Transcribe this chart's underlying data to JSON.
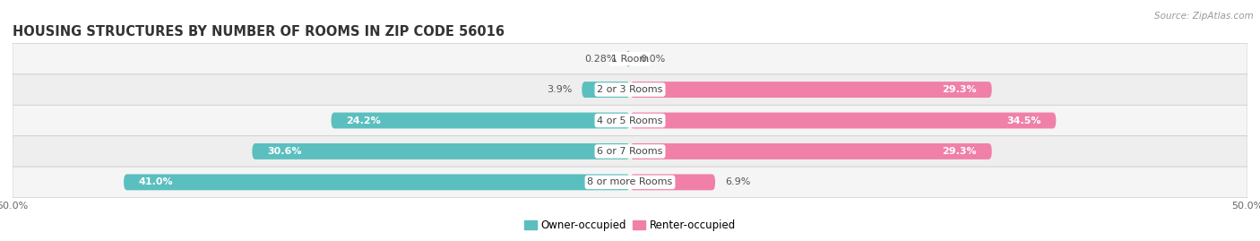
{
  "title": "HOUSING STRUCTURES BY NUMBER OF ROOMS IN ZIP CODE 56016",
  "source": "Source: ZipAtlas.com",
  "categories": [
    "1 Room",
    "2 or 3 Rooms",
    "4 or 5 Rooms",
    "6 or 7 Rooms",
    "8 or more Rooms"
  ],
  "owner_values": [
    0.28,
    3.9,
    24.2,
    30.6,
    41.0
  ],
  "renter_values": [
    0.0,
    29.3,
    34.5,
    29.3,
    6.9
  ],
  "owner_color": "#5BBFBF",
  "renter_color": "#F080A8",
  "axis_max": 50.0,
  "axis_min": -50.0,
  "bar_height": 0.52,
  "title_fontsize": 10.5,
  "label_fontsize": 8.0,
  "tick_fontsize": 8.0,
  "source_fontsize": 7.5,
  "legend_fontsize": 8.5,
  "bg_colors": [
    "#F5F5F5",
    "#EEEEEE",
    "#F5F5F5",
    "#EEEEEE",
    "#F5F5F5"
  ]
}
